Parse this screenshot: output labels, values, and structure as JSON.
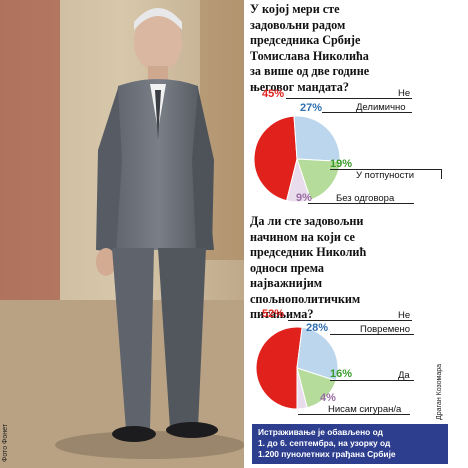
{
  "photo_credit": "Фото Фонет",
  "chart_credit": "Драган Козомара",
  "footnote_lines": [
    "Истраживање је обављено од",
    "1. до 6. септембра, на узорку од",
    "1.200 пунолетних грађана Србије"
  ],
  "colors": {
    "red": "#e0211c",
    "blue": "#bcd6ee",
    "green": "#b6dc9b",
    "grey": "#e9dcec",
    "footnote_bg": "#2d3e8f"
  },
  "chart_data": [
    {
      "type": "pie",
      "title_lines": [
        "У којој мери сте",
        "задовољни радом",
        "председника Србије",
        "Томислава Николића",
        "за више од две године",
        "његовог мандата?"
      ],
      "slices": [
        {
          "label": "Не",
          "value": 45,
          "pct_label": "45%"
        },
        {
          "label": "Делимично",
          "value": 27,
          "pct_label": "27%"
        },
        {
          "label": "У потпуности",
          "value": 19,
          "pct_label": "19%"
        },
        {
          "label": "Без одговора",
          "value": 9,
          "pct_label": "9%"
        }
      ]
    },
    {
      "type": "pie",
      "title_lines": [
        "Да ли сте задовољни",
        "начином на који се",
        "председник Николић",
        "односи према",
        "најважнијим",
        "спољнополитичким",
        "питањима?"
      ],
      "slices": [
        {
          "label": "Не",
          "value": 52,
          "pct_label": "52%"
        },
        {
          "label": "Повремено",
          "value": 28,
          "pct_label": "28%"
        },
        {
          "label": "Да",
          "value": 16,
          "pct_label": "16%"
        },
        {
          "label": "Нисам сигуран/а",
          "value": 4,
          "pct_label": "4%"
        }
      ]
    }
  ]
}
